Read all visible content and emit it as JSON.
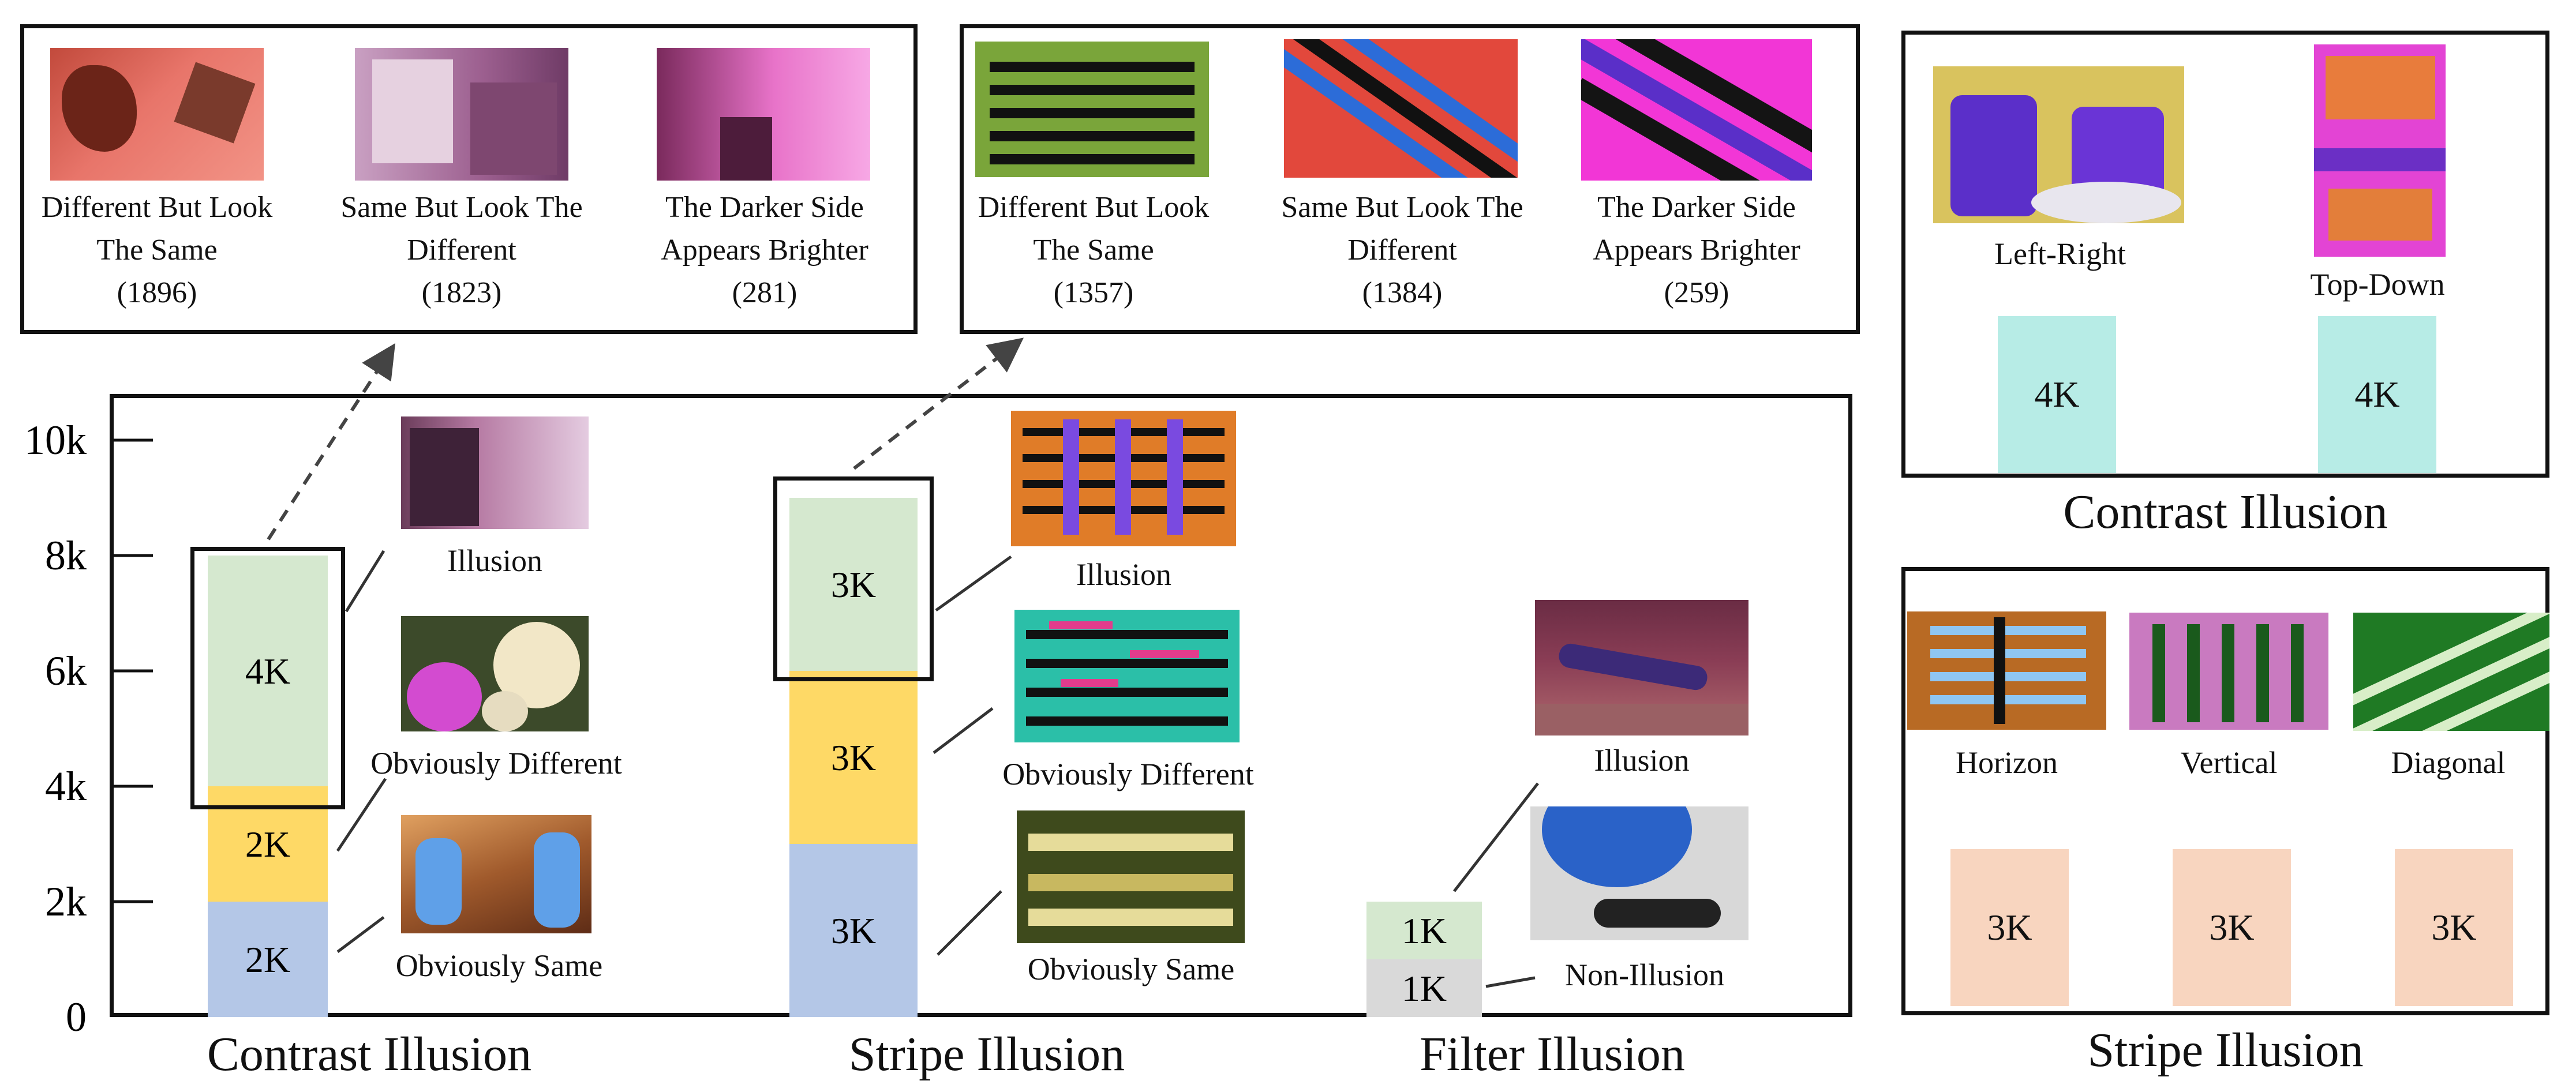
{
  "chart_data": {
    "type": "bar",
    "categories": [
      "Contrast Illusion",
      "Stripe Illusion",
      "Filter Illusion"
    ],
    "ylim": [
      0,
      10000
    ],
    "yticks": [
      "0",
      "2k",
      "4k",
      "6k",
      "8k",
      "10k"
    ],
    "grid": false,
    "stacked": true,
    "segments": [
      {
        "category": "Contrast Illusion",
        "group": "Obviously Same",
        "value": 2000,
        "label": "2K",
        "color": "#b4c7e7"
      },
      {
        "category": "Contrast Illusion",
        "group": "Obviously Different",
        "value": 2000,
        "label": "2K",
        "color": "#fed966"
      },
      {
        "category": "Contrast Illusion",
        "group": "Illusion",
        "value": 4000,
        "label": "4K",
        "color": "#d5e8cf"
      },
      {
        "category": "Stripe Illusion",
        "group": "Obviously Same",
        "value": 3000,
        "label": "3K",
        "color": "#b4c7e7"
      },
      {
        "category": "Stripe Illusion",
        "group": "Obviously Different",
        "value": 3000,
        "label": "3K",
        "color": "#fed966"
      },
      {
        "category": "Stripe Illusion",
        "group": "Illusion",
        "value": 3000,
        "label": "3K",
        "color": "#d5e8cf"
      },
      {
        "category": "Filter Illusion",
        "group": "Non-Illusion",
        "value": 1000,
        "label": "1K",
        "color": "#d9d9d9"
      },
      {
        "category": "Filter Illusion",
        "group": "Illusion",
        "value": 1000,
        "label": "1K",
        "color": "#d5e8cf"
      }
    ]
  },
  "contrast_panel": {
    "items": [
      {
        "label": "Different But Look The Same",
        "count": "(1896)"
      },
      {
        "label": "Same But Look The Different",
        "count": "(1823)"
      },
      {
        "label": "The Darker Side Appears Brighter",
        "count": "(281)"
      }
    ]
  },
  "stripe_panel": {
    "items": [
      {
        "label": "Different But Look The Same",
        "count": "(1357)"
      },
      {
        "label": "Same But Look The Different",
        "count": "(1384)"
      },
      {
        "label": "The Darker Side Appears Brighter",
        "count": "(259)"
      }
    ]
  },
  "side_contrast": {
    "title": "Contrast Illusion",
    "items": [
      {
        "label": "Left-Right",
        "value": "4K"
      },
      {
        "label": "Top-Down",
        "value": "4K"
      }
    ]
  },
  "side_stripe": {
    "title": "Stripe Illusion",
    "items": [
      {
        "label": "Horizon",
        "value": "3K"
      },
      {
        "label": "Vertical",
        "value": "3K"
      },
      {
        "label": "Diagonal",
        "value": "3K"
      }
    ]
  },
  "segment_labels": {
    "illusion": "Illusion",
    "obviously_different": "Obviously Different",
    "obviously_same": "Obviously Same",
    "non_illusion": "Non-Illusion"
  },
  "colors": {
    "illusion": "#d5e8cf",
    "different": "#fed966",
    "same": "#b4c7e7",
    "non_illusion": "#d9d9d9",
    "side_contrast_bar": "#b7ece6",
    "side_stripe_bar": "#f8d5bf"
  }
}
